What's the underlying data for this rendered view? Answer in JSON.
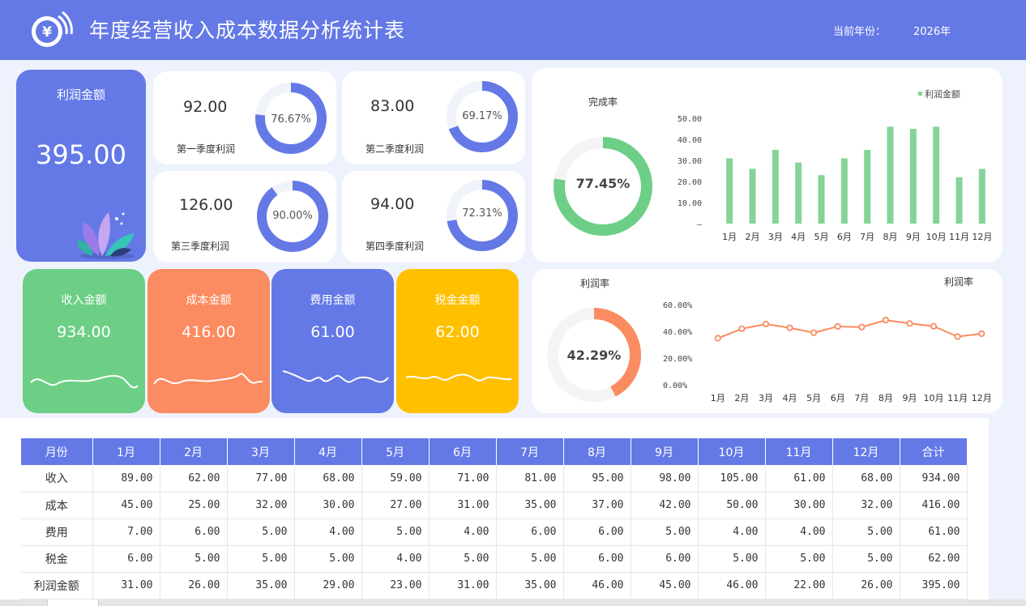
{
  "header": {
    "title": "年度经营收入成本数据分析统计表",
    "year_label": "当前年份：",
    "year_value": "2026年",
    "logo_icon": "yen-coin-icon",
    "bg_color": "#6479e6"
  },
  "profit_card": {
    "label": "利润金额",
    "value": "395.00",
    "illustration": "plant-illustration"
  },
  "quarters": [
    {
      "label": "第一季度利润",
      "value": "92.00",
      "pct_text": "76.67%",
      "pct": 0.7667
    },
    {
      "label": "第二季度利润",
      "value": "83.00",
      "pct_text": "69.17%",
      "pct": 0.6917
    },
    {
      "label": "第三季度利润",
      "value": "126.00",
      "pct_text": "90.00%",
      "pct": 0.9
    },
    {
      "label": "第四季度利润",
      "value": "94.00",
      "pct_text": "72.31%",
      "pct": 0.7231
    }
  ],
  "kpis": [
    {
      "label": "收入金额",
      "value": "934.00",
      "color": "#6dcf85"
    },
    {
      "label": "成本金额",
      "value": "416.00",
      "color": "#fb8b60"
    },
    {
      "label": "费用金额",
      "value": "61.00",
      "color": "#6479e6"
    },
    {
      "label": "税金金额",
      "value": "62.00",
      "color": "#ffc000"
    }
  ],
  "completion": {
    "title": "完成率",
    "pct_text": "77.45%",
    "pct": 0.7745,
    "color": "#6dcf85"
  },
  "profit_rate": {
    "title": "利润率",
    "pct_text": "42.29%",
    "pct": 0.4229,
    "color": "#fb8b60"
  },
  "chart_data": [
    {
      "type": "bar",
      "legend": "利润金额",
      "categories": [
        "1月",
        "2月",
        "3月",
        "4月",
        "5月",
        "6月",
        "7月",
        "8月",
        "9月",
        "10月",
        "11月",
        "12月"
      ],
      "values": [
        31,
        26,
        35,
        29,
        23,
        31,
        35,
        46,
        45,
        46,
        22,
        26
      ],
      "y_ticks": [
        "50.00",
        "40.00",
        "30.00",
        "20.00",
        "10.00",
        "–"
      ],
      "ylim": [
        0,
        50
      ],
      "color": "#86d39a",
      "legend_position": "top-right",
      "grid": false
    },
    {
      "type": "line",
      "title": "利润率",
      "categories": [
        "1月",
        "2月",
        "3月",
        "4月",
        "5月",
        "6月",
        "7月",
        "8月",
        "9月",
        "10月",
        "11月",
        "12月"
      ],
      "values": [
        34.83,
        41.94,
        45.45,
        42.65,
        38.98,
        43.66,
        43.21,
        48.42,
        45.92,
        43.81,
        36.07,
        38.24
      ],
      "y_ticks": [
        "60.00%",
        "40.00%",
        "20.00%",
        "0.00%"
      ],
      "ylim": [
        0,
        60
      ],
      "color": "#fb8b60",
      "grid": false
    }
  ],
  "table": {
    "headers": [
      "月份",
      "1月",
      "2月",
      "3月",
      "4月",
      "5月",
      "6月",
      "7月",
      "8月",
      "9月",
      "10月",
      "11月",
      "12月",
      "合计"
    ],
    "rows": [
      [
        "收入",
        "89.00",
        "62.00",
        "77.00",
        "68.00",
        "59.00",
        "71.00",
        "81.00",
        "95.00",
        "98.00",
        "105.00",
        "61.00",
        "68.00",
        "934.00"
      ],
      [
        "成本",
        "45.00",
        "25.00",
        "32.00",
        "30.00",
        "27.00",
        "31.00",
        "35.00",
        "37.00",
        "42.00",
        "50.00",
        "30.00",
        "32.00",
        "416.00"
      ],
      [
        "费用",
        "7.00",
        "6.00",
        "5.00",
        "4.00",
        "5.00",
        "4.00",
        "6.00",
        "6.00",
        "5.00",
        "4.00",
        "4.00",
        "5.00",
        "61.00"
      ],
      [
        "税金",
        "6.00",
        "5.00",
        "5.00",
        "5.00",
        "4.00",
        "5.00",
        "5.00",
        "6.00",
        "6.00",
        "5.00",
        "5.00",
        "5.00",
        "62.00"
      ],
      [
        "利润金额",
        "31.00",
        "26.00",
        "35.00",
        "29.00",
        "23.00",
        "31.00",
        "35.00",
        "46.00",
        "45.00",
        "46.00",
        "22.00",
        "26.00",
        "395.00"
      ]
    ]
  }
}
